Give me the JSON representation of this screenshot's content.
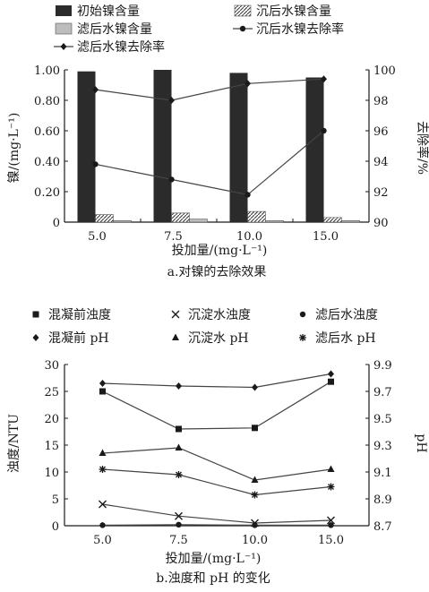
{
  "chart_data": [
    {
      "type": "bar",
      "subtitle": "a.对镍的去除效果",
      "xlabel": "投加量/(mg·L⁻¹)",
      "ylabel": "镍/(mg·L⁻¹)",
      "y2label": "去除率/%",
      "categories": [
        "5.0",
        "7.5",
        "10.0",
        "15.0"
      ],
      "ylim": [
        0,
        1.0
      ],
      "yticks": [
        "0",
        "0.20",
        "0.40",
        "0.60",
        "0.80",
        "1.00"
      ],
      "y2lim": [
        90,
        100
      ],
      "y2ticks": [
        "90",
        "92",
        "94",
        "96",
        "98",
        "100"
      ],
      "legend": [
        {
          "label": "初始镍含量",
          "kind": "bar",
          "fill": "#2b2b2b"
        },
        {
          "label": "沉后水镍含量",
          "kind": "bar",
          "fill": "hatch"
        },
        {
          "label": "滤后水镍含量",
          "kind": "bar",
          "fill": "#bdbdbd"
        },
        {
          "label": "沉后水镍去除率",
          "kind": "line",
          "marker": "circle"
        },
        {
          "label": "滤后水镍去除率",
          "kind": "line",
          "marker": "diamond"
        }
      ],
      "bar_series": [
        {
          "name": "初始镍含量",
          "values": [
            0.99,
            1.0,
            0.98,
            0.95
          ]
        },
        {
          "name": "沉后水镍含量",
          "values": [
            0.05,
            0.06,
            0.07,
            0.03
          ]
        },
        {
          "name": "滤后水镍含量",
          "values": [
            0.01,
            0.02,
            0.01,
            0.01
          ]
        }
      ],
      "line_series": [
        {
          "name": "沉后水镍去除率",
          "axis": "right",
          "marker": "circle",
          "values": [
            93.8,
            92.8,
            91.8,
            96.0
          ]
        },
        {
          "name": "滤后水镍去除率",
          "axis": "right",
          "marker": "diamond",
          "values": [
            98.7,
            98.0,
            99.1,
            99.4
          ]
        }
      ]
    },
    {
      "type": "line",
      "subtitle": "b.浊度和 pH 的变化",
      "xlabel": "投加量/(mg·L⁻¹)",
      "ylabel": "浊度/NTU",
      "y2label": "pH",
      "categories": [
        "5.0",
        "7.5",
        "10.0",
        "15.0"
      ],
      "ylim": [
        0,
        30
      ],
      "yticks": [
        "0",
        "5",
        "10",
        "15",
        "20",
        "25",
        "30"
      ],
      "y2lim": [
        8.7,
        9.9
      ],
      "y2ticks": [
        "8.7",
        "8.9",
        "9.1",
        "9.3",
        "9.5",
        "9.7",
        "9.9"
      ],
      "legend": [
        {
          "label": "混凝前浊度",
          "marker": "square"
        },
        {
          "label": "沉淀水浊度",
          "marker": "x"
        },
        {
          "label": "滤后水浊度",
          "marker": "circle"
        },
        {
          "label": "混凝前 pH",
          "marker": "diamond"
        },
        {
          "label": "沉淀水 pH",
          "marker": "triangle"
        },
        {
          "label": "滤后水 pH",
          "marker": "star"
        }
      ],
      "series": [
        {
          "name": "混凝前浊度",
          "axis": "left",
          "marker": "square",
          "values": [
            25.0,
            18.0,
            18.2,
            26.8
          ]
        },
        {
          "name": "沉淀水浊度",
          "axis": "left",
          "marker": "x",
          "values": [
            4.0,
            1.8,
            0.5,
            1.0
          ]
        },
        {
          "name": "滤后水浊度",
          "axis": "left",
          "marker": "circle",
          "values": [
            0.1,
            0.2,
            0.1,
            0.1
          ]
        },
        {
          "name": "混凝前 pH",
          "axis": "right",
          "marker": "diamond",
          "values": [
            9.76,
            9.74,
            9.73,
            9.83
          ]
        },
        {
          "name": "沉淀水 pH",
          "axis": "right",
          "marker": "triangle",
          "values": [
            9.24,
            9.28,
            9.04,
            9.12
          ]
        },
        {
          "name": "滤后水 pH",
          "axis": "right",
          "marker": "star",
          "values": [
            9.12,
            9.08,
            8.93,
            8.99
          ]
        }
      ]
    }
  ]
}
